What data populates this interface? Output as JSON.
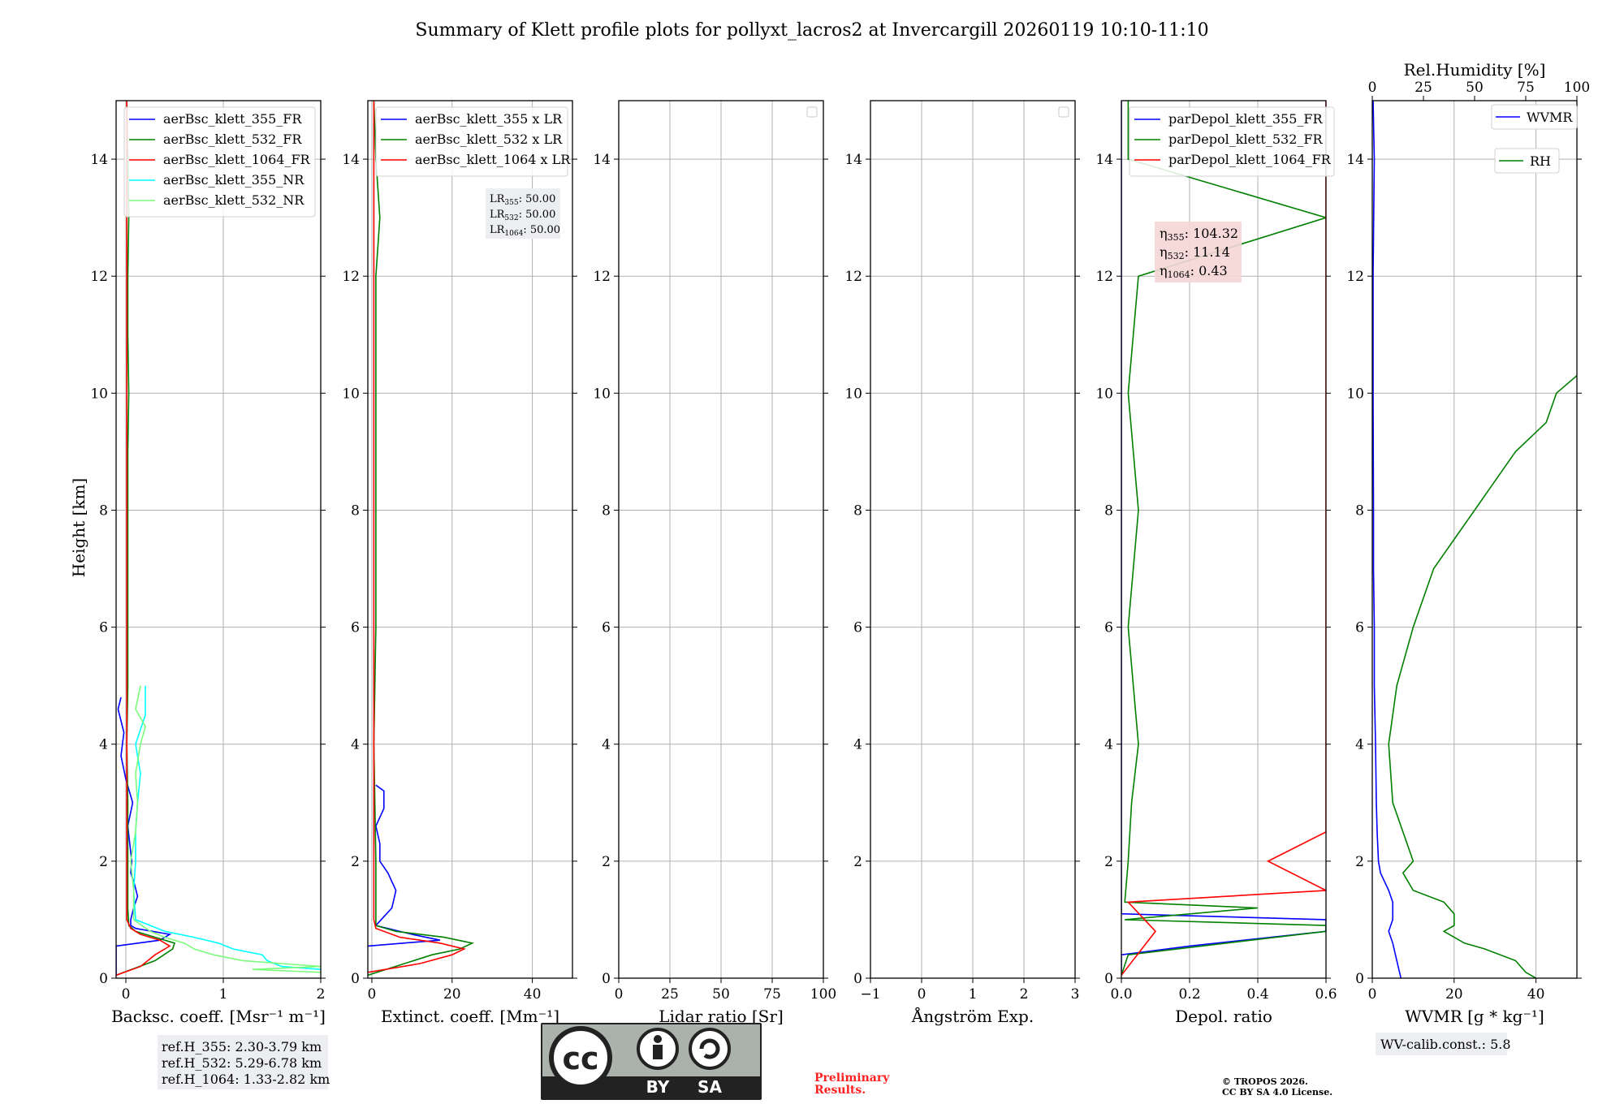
{
  "chart_data": {
    "type": "line",
    "title": "Summary of Klett profile plots for pollyxt_lacros2 at Invercargill 20260119 10:10-11:10",
    "ylabel": "Height [km]",
    "ylim": [
      0,
      15
    ],
    "yticks": [
      0,
      2,
      4,
      6,
      8,
      10,
      12,
      14
    ],
    "panels": [
      {
        "id": "bsc",
        "xlabel": "Backsc. coeff. [Msr⁻¹ m⁻¹]",
        "xlim": [
          -0.1,
          2
        ],
        "xticks": [
          0,
          1,
          2
        ],
        "legend": [
          "aerBsc_klett_355_FR",
          "aerBsc_klett_532_FR",
          "aerBsc_klett_1064_FR",
          "aerBsc_klett_355_NR",
          "aerBsc_klett_532_NR"
        ],
        "series": [
          {
            "name": "aerBsc_klett_355_FR",
            "color": "#0000ff",
            "h": [
              0.05,
              0.3,
              0.55,
              0.65,
              0.75,
              0.85,
              0.9,
              1.0,
              1.2,
              1.4,
              1.6,
              1.8,
              2.0,
              2.3,
              2.6,
              3.0,
              3.4,
              3.8,
              4.2,
              4.6,
              4.8
            ],
            "v": [
              -0.1,
              -0.1,
              -0.1,
              0.35,
              0.45,
              0.1,
              0.05,
              0.05,
              0.08,
              0.12,
              0.09,
              0.05,
              0.06,
              0.04,
              0.02,
              0.07,
              0.0,
              -0.05,
              -0.02,
              -0.08,
              -0.05
            ]
          },
          {
            "name": "aerBsc_klett_532_FR",
            "color": "#008000",
            "h": [
              0.05,
              0.3,
              0.5,
              0.6,
              0.7,
              0.8,
              0.9,
              1.2,
              2,
              3,
              4,
              5,
              6,
              7,
              8,
              9,
              10,
              11,
              12,
              13,
              14,
              15
            ],
            "v": [
              -0.1,
              0.3,
              0.48,
              0.5,
              0.3,
              0.1,
              0.03,
              0.02,
              0.02,
              0.02,
              0.01,
              0.02,
              0.02,
              0.02,
              0.02,
              0.02,
              0.03,
              0.02,
              0.02,
              0.03,
              0.02,
              0.01
            ]
          },
          {
            "name": "aerBsc_klett_1064_FR",
            "color": "#ff0000",
            "h": [
              0.05,
              0.2,
              0.4,
              0.55,
              0.65,
              0.75,
              0.85,
              1.0,
              2,
              3,
              4,
              5,
              6,
              7,
              8,
              9,
              10,
              11,
              12,
              13,
              14,
              15
            ],
            "v": [
              -0.1,
              0.15,
              0.3,
              0.45,
              0.35,
              0.15,
              0.05,
              0.01,
              0.01,
              0.01,
              0.01,
              0.01,
              0.01,
              0.01,
              0.01,
              0.01,
              0.01,
              0.01,
              0.01,
              0.01,
              0.01,
              0.01
            ]
          },
          {
            "name": "aerBsc_klett_355_NR",
            "color": "#00ffff",
            "h": [
              0.15,
              0.2,
              0.3,
              0.4,
              0.5,
              0.6,
              0.7,
              0.8,
              1.0,
              1.5,
              2.0,
              2.5,
              3.0,
              3.5,
              4.0,
              4.5,
              5.0
            ],
            "v": [
              2.0,
              1.6,
              1.45,
              1.4,
              1.1,
              0.95,
              0.7,
              0.4,
              0.1,
              0.08,
              0.1,
              0.1,
              0.12,
              0.15,
              0.1,
              0.2,
              0.2
            ]
          },
          {
            "name": "aerBsc_klett_532_NR",
            "color": "#7cfc7c",
            "h": [
              0.1,
              0.15,
              0.2,
              0.3,
              0.4,
              0.5,
              0.6,
              0.7,
              0.8,
              1.0,
              1.5,
              2.0,
              2.5,
              3.0,
              3.5,
              4.0,
              4.3,
              4.6,
              5.0
            ],
            "v": [
              2.0,
              1.3,
              2.0,
              1.2,
              0.9,
              0.7,
              0.6,
              0.4,
              0.25,
              0.08,
              0.08,
              0.05,
              0.1,
              0.12,
              0.1,
              0.15,
              0.2,
              0.1,
              0.15
            ]
          }
        ],
        "refbox": [
          "ref.H_355: 2.30-3.79 km",
          "ref.H_532: 5.29-6.78 km",
          "ref.H_1064: 1.33-2.82 km"
        ]
      },
      {
        "id": "ext",
        "xlabel": "Extinct. coeff. [Mm⁻¹]",
        "xlim": [
          -1,
          50
        ],
        "xticks": [
          0,
          20,
          40
        ],
        "legend": [
          "aerBsc_klett_355 x LR",
          "aerBsc_klett_532 x LR",
          "aerBsc_klett_1064 x LR"
        ],
        "lr_box": [
          "LR355: 50.00",
          "LR532: 50.00",
          "LR1064: 50.00"
        ],
        "series": [
          {
            "name": "aerBsc_klett_355 x LR",
            "color": "#0000ff",
            "h": [
              0.55,
              0.65,
              0.75,
              0.9,
              1.2,
              1.5,
              1.8,
              2.0,
              2.3,
              2.6,
              2.9,
              3.2,
              3.3
            ],
            "v": [
              -1,
              17,
              10,
              1,
              5,
              6,
              4,
              2,
              2,
              1,
              3,
              3,
              1
            ]
          },
          {
            "name": "aerBsc_klett_532 x LR",
            "color": "#008000",
            "h": [
              0.05,
              0.4,
              0.5,
              0.6,
              0.7,
              0.8,
              0.9,
              1.2,
              2,
              4,
              6,
              8,
              10,
              12,
              13,
              14,
              15
            ],
            "v": [
              -1,
              15,
              22,
              25,
              18,
              6,
              1,
              1,
              1,
              0.5,
              1,
              1,
              1,
              1,
              2,
              1,
              0.5
            ]
          },
          {
            "name": "aerBsc_klett_1064 x LR",
            "color": "#ff0000",
            "h": [
              0.1,
              0.25,
              0.4,
              0.5,
              0.6,
              0.7,
              0.85,
              1.0,
              2,
              4,
              6,
              8,
              10,
              12,
              14,
              15
            ],
            "v": [
              -1,
              12,
              20,
              23,
              17,
              7,
              1,
              0.5,
              0.5,
              0.5,
              0.5,
              0.5,
              0.5,
              0.5,
              0.5,
              0.5
            ]
          }
        ]
      },
      {
        "id": "lr",
        "xlabel": "Lidar ratio [Sr]",
        "xlim": [
          0,
          100
        ],
        "xticks": [
          0,
          25,
          50,
          75,
          100
        ],
        "series": []
      },
      {
        "id": "ae",
        "xlabel": "Ångström Exp.",
        "xlim": [
          -1,
          3
        ],
        "xticks": [
          -1,
          0,
          1,
          2,
          3
        ],
        "series": []
      },
      {
        "id": "depol",
        "xlabel": "Depol. ratio",
        "xlim": [
          0,
          0.6
        ],
        "xticks": [
          0.0,
          0.2,
          0.4,
          0.6
        ],
        "legend": [
          "parDepol_klett_355_FR",
          "parDepol_klett_532_FR",
          "parDepol_klett_1064_FR"
        ],
        "eta_box": [
          "η355: 104.32",
          "η532: 11.14",
          "η1064: 0.43"
        ],
        "series": [
          {
            "name": "parDepol_klett_355_FR",
            "color": "#0000ff",
            "h": [
              0.05,
              0.4,
              0.55,
              0.8,
              0.9,
              1.0,
              1.1,
              1.5,
              2,
              3,
              4,
              6,
              8,
              10,
              12,
              14,
              15
            ],
            "v": [
              0.0,
              0.0,
              0.2,
              0.6,
              0.6,
              0.6,
              0.0,
              0.0,
              0.0,
              0.0,
              0.0,
              0.0,
              0.0,
              0.0,
              0.0,
              0.0,
              0.0
            ]
          },
          {
            "name": "parDepol_klett_532_FR",
            "color": "#008000",
            "h": [
              0.05,
              0.4,
              0.8,
              0.85,
              0.9,
              1.0,
              1.2,
              1.3,
              2,
              3,
              4,
              6,
              8,
              10,
              12,
              13,
              14,
              15
            ],
            "v": [
              0.0,
              0.02,
              0.6,
              0.6,
              0.6,
              0.01,
              0.4,
              0.01,
              0.02,
              0.03,
              0.05,
              0.02,
              0.05,
              0.02,
              0.05,
              0.6,
              0.02,
              0.02
            ]
          },
          {
            "name": "parDepol_klett_1064_FR",
            "color": "#ff0000",
            "h": [
              0.05,
              0.8,
              1.3,
              1.5,
              2.0,
              2.5,
              3.0,
              4,
              5,
              6,
              7,
              8,
              9,
              10,
              11,
              12,
              13,
              14,
              15
            ],
            "v": [
              0.0,
              0.1,
              0.02,
              0.6,
              0.43,
              0.6,
              0.6,
              0.6,
              0.6,
              0.6,
              0.6,
              0.6,
              0.6,
              0.6,
              0.6,
              0.6,
              0.6,
              0.6,
              0.6
            ]
          }
        ]
      },
      {
        "id": "wv",
        "xlabel": "WVMR [g * kg⁻¹]",
        "xlim": [
          0,
          50
        ],
        "xticks": [
          0,
          20,
          40
        ],
        "top_label": "Rel.Humidity [%]",
        "top_xlim": [
          0,
          100
        ],
        "top_xticks": [
          0,
          25,
          50,
          75,
          100
        ],
        "legend": [
          "WVMR",
          "RH"
        ],
        "wv_box": "WV-calib.const.: 5.8",
        "series": [
          {
            "name": "WVMR",
            "color": "#0000ff",
            "axis": "bottom",
            "h": [
              0.0,
              0.3,
              0.6,
              0.8,
              1.0,
              1.3,
              1.5,
              1.8,
              2.0,
              2.5,
              3.0,
              4.0,
              5.0,
              6.0,
              7.0,
              8.0,
              10,
              12,
              14,
              15
            ],
            "v": [
              7,
              6,
              5,
              4,
              5,
              5,
              4,
              2,
              1.5,
              1.2,
              1,
              0.8,
              0.5,
              0.5,
              0.3,
              0.3,
              0.2,
              0.2,
              0.5,
              0.2
            ]
          },
          {
            "name": "RH",
            "color": "#008000",
            "axis": "top",
            "h": [
              0.0,
              0.1,
              0.3,
              0.5,
              0.6,
              0.8,
              0.9,
              1.1,
              1.3,
              1.5,
              1.8,
              2.0,
              2.5,
              3.0,
              4.0,
              5.0,
              6.0,
              7.0,
              7.5,
              8.0,
              8.5,
              9.0,
              9.5,
              10.0,
              10.3
            ],
            "v": [
              80,
              75,
              70,
              55,
              45,
              35,
              40,
              40,
              35,
              20,
              15,
              20,
              15,
              10,
              8,
              12,
              20,
              30,
              40,
              50,
              60,
              70,
              85,
              90,
              100
            ]
          }
        ]
      }
    ]
  },
  "footer": {
    "cc_logo_letters": [
      "cc",
      "BY",
      "SA"
    ],
    "preliminary": [
      "Preliminary",
      "Results."
    ],
    "copyright": [
      "© TROPOS 2026.",
      "CC BY SA 4.0 License."
    ]
  }
}
